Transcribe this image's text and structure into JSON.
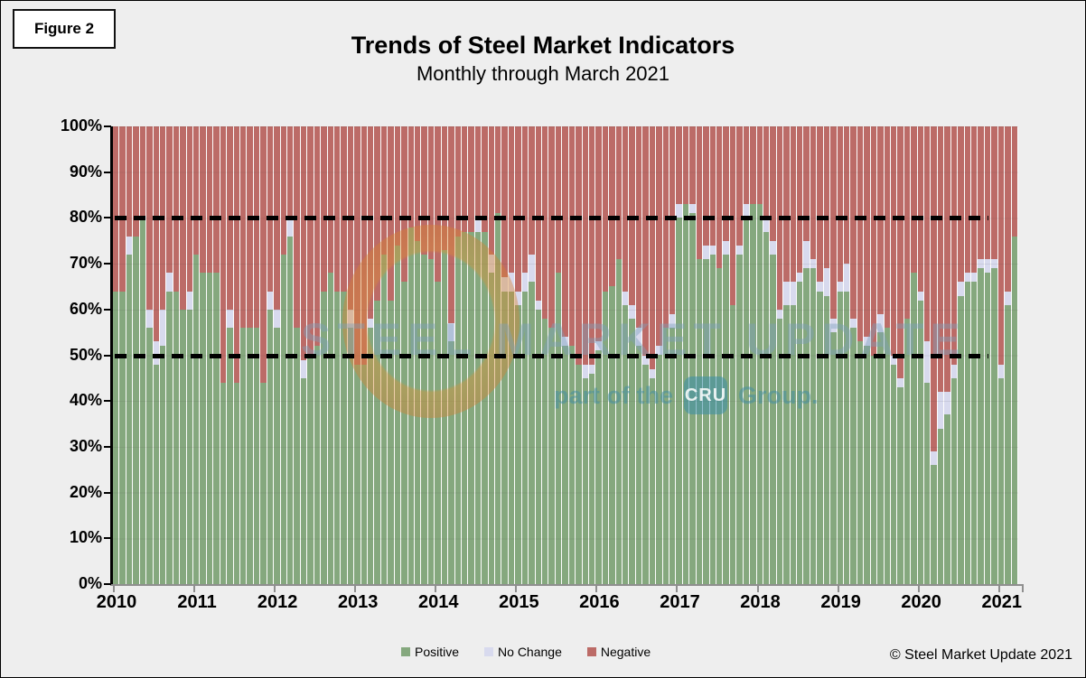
{
  "figure_label": "Figure 2",
  "title": "Trends of Steel Market Indicators",
  "subtitle": "Monthly through March 2021",
  "copyright": "© Steel Market Update 2021",
  "watermark": {
    "line1": "STEEL MARKET UPDATE",
    "line2_prefix": "part of the",
    "badge": "CRU",
    "line2_suffix": "Group."
  },
  "colors": {
    "positive": "#85a87e",
    "no_change": "#d8daee",
    "negative": "#bc6b67",
    "page_bg": "#eeeeee",
    "plot_bg": "#fdfdfd",
    "refline": "#000000",
    "watermark_orange": "#e09232",
    "watermark_teal": "#3e8ca6"
  },
  "legend": [
    {
      "label": "Positive",
      "color": "#85a87e"
    },
    {
      "label": "No Change",
      "color": "#d8daee"
    },
    {
      "label": "Negative",
      "color": "#bc6b67"
    }
  ],
  "chart_data": {
    "type": "bar",
    "stacked": true,
    "percent_stacked": true,
    "title": "Trends of Steel Market Indicators",
    "subtitle": "Monthly through March 2021",
    "xlabel": "",
    "ylabel": "",
    "ylim": [
      0,
      100
    ],
    "yticks": [
      "0%",
      "10%",
      "20%",
      "30%",
      "40%",
      "50%",
      "60%",
      "70%",
      "80%",
      "90%",
      "100%"
    ],
    "x_years": [
      "2010",
      "2011",
      "2012",
      "2013",
      "2014",
      "2015",
      "2016",
      "2017",
      "2018",
      "2019",
      "2020",
      "2021"
    ],
    "grid": true,
    "legend_position": "bottom",
    "reference_lines": [
      {
        "value": 50,
        "style": "dashed"
      },
      {
        "value": 80,
        "style": "dashed"
      }
    ],
    "series_names": [
      "Positive",
      "No Change",
      "Negative"
    ],
    "columns": [
      "month",
      "positive",
      "no_change",
      "negative"
    ],
    "months": [
      [
        "2010-01",
        64,
        0,
        36
      ],
      [
        "2010-02",
        64,
        0,
        36
      ],
      [
        "2010-03",
        72,
        4,
        24
      ],
      [
        "2010-04",
        76,
        0,
        24
      ],
      [
        "2010-05",
        80,
        0,
        20
      ],
      [
        "2010-06",
        56,
        4,
        40
      ],
      [
        "2010-07",
        48,
        5,
        47
      ],
      [
        "2010-08",
        52,
        8,
        40
      ],
      [
        "2010-09",
        64,
        4,
        32
      ],
      [
        "2010-10",
        64,
        0,
        36
      ],
      [
        "2010-11",
        60,
        0,
        40
      ],
      [
        "2010-12",
        60,
        4,
        36
      ],
      [
        "2011-01",
        72,
        0,
        28
      ],
      [
        "2011-02",
        68,
        0,
        32
      ],
      [
        "2011-03",
        68,
        0,
        32
      ],
      [
        "2011-04",
        68,
        0,
        32
      ],
      [
        "2011-05",
        44,
        0,
        56
      ],
      [
        "2011-06",
        56,
        4,
        40
      ],
      [
        "2011-07",
        44,
        0,
        56
      ],
      [
        "2011-08",
        56,
        0,
        44
      ],
      [
        "2011-09",
        56,
        0,
        44
      ],
      [
        "2011-10",
        56,
        0,
        44
      ],
      [
        "2011-11",
        44,
        0,
        56
      ],
      [
        "2011-12",
        60,
        4,
        36
      ],
      [
        "2012-01",
        56,
        4,
        40
      ],
      [
        "2012-02",
        72,
        0,
        28
      ],
      [
        "2012-03",
        76,
        4,
        20
      ],
      [
        "2012-04",
        56,
        0,
        44
      ],
      [
        "2012-05",
        45,
        4,
        51
      ],
      [
        "2012-06",
        50,
        0,
        50
      ],
      [
        "2012-07",
        52,
        0,
        48
      ],
      [
        "2012-08",
        64,
        0,
        36
      ],
      [
        "2012-09",
        68,
        0,
        32
      ],
      [
        "2012-10",
        64,
        0,
        36
      ],
      [
        "2012-11",
        64,
        0,
        36
      ],
      [
        "2012-12",
        56,
        4,
        40
      ],
      [
        "2013-01",
        48,
        0,
        52
      ],
      [
        "2013-02",
        48,
        0,
        52
      ],
      [
        "2013-03",
        56,
        2,
        42
      ],
      [
        "2013-04",
        62,
        0,
        38
      ],
      [
        "2013-05",
        72,
        0,
        28
      ],
      [
        "2013-06",
        62,
        0,
        38
      ],
      [
        "2013-07",
        74,
        0,
        26
      ],
      [
        "2013-08",
        66,
        0,
        34
      ],
      [
        "2013-09",
        78,
        0,
        22
      ],
      [
        "2013-10",
        75,
        0,
        25
      ],
      [
        "2013-11",
        72,
        0,
        28
      ],
      [
        "2013-12",
        71,
        0,
        29
      ],
      [
        "2014-01",
        66,
        0,
        34
      ],
      [
        "2014-02",
        73,
        0,
        27
      ],
      [
        "2014-03",
        53,
        4,
        43
      ],
      [
        "2014-04",
        76,
        0,
        24
      ],
      [
        "2014-05",
        77,
        0,
        23
      ],
      [
        "2014-06",
        77,
        0,
        23
      ],
      [
        "2014-07",
        77,
        3,
        20
      ],
      [
        "2014-08",
        77,
        0,
        23
      ],
      [
        "2014-09",
        68,
        4,
        28
      ],
      [
        "2014-10",
        81,
        0,
        19
      ],
      [
        "2014-11",
        64,
        3,
        33
      ],
      [
        "2014-12",
        64,
        4,
        32
      ],
      [
        "2015-01",
        61,
        3,
        36
      ],
      [
        "2015-02",
        64,
        4,
        32
      ],
      [
        "2015-03",
        66,
        6,
        28
      ],
      [
        "2015-04",
        60,
        2,
        38
      ],
      [
        "2015-05",
        58,
        0,
        42
      ],
      [
        "2015-06",
        56,
        0,
        44
      ],
      [
        "2015-07",
        68,
        0,
        32
      ],
      [
        "2015-08",
        52,
        2,
        46
      ],
      [
        "2015-09",
        52,
        0,
        48
      ],
      [
        "2015-10",
        48,
        0,
        52
      ],
      [
        "2015-11",
        45,
        3,
        52
      ],
      [
        "2015-12",
        46,
        2,
        52
      ],
      [
        "2016-01",
        51,
        2,
        47
      ],
      [
        "2016-02",
        64,
        0,
        36
      ],
      [
        "2016-03",
        65,
        0,
        35
      ],
      [
        "2016-04",
        71,
        0,
        29
      ],
      [
        "2016-05",
        61,
        3,
        36
      ],
      [
        "2016-06",
        58,
        3,
        39
      ],
      [
        "2016-07",
        52,
        4,
        44
      ],
      [
        "2016-08",
        48,
        2,
        50
      ],
      [
        "2016-09",
        45,
        2,
        53
      ],
      [
        "2016-10",
        50,
        2,
        48
      ],
      [
        "2016-11",
        56,
        0,
        44
      ],
      [
        "2016-12",
        56,
        3,
        41
      ],
      [
        "2017-01",
        80,
        3,
        17
      ],
      [
        "2017-02",
        83,
        0,
        17
      ],
      [
        "2017-03",
        81,
        2,
        17
      ],
      [
        "2017-04",
        71,
        0,
        29
      ],
      [
        "2017-05",
        71,
        3,
        26
      ],
      [
        "2017-06",
        72,
        2,
        26
      ],
      [
        "2017-07",
        69,
        0,
        31
      ],
      [
        "2017-08",
        72,
        3,
        25
      ],
      [
        "2017-09",
        61,
        0,
        39
      ],
      [
        "2017-10",
        72,
        2,
        26
      ],
      [
        "2017-11",
        80,
        3,
        17
      ],
      [
        "2017-12",
        83,
        0,
        17
      ],
      [
        "2018-01",
        83,
        0,
        17
      ],
      [
        "2018-02",
        77,
        3,
        20
      ],
      [
        "2018-03",
        72,
        3,
        25
      ],
      [
        "2018-04",
        58,
        2,
        40
      ],
      [
        "2018-05",
        61,
        5,
        34
      ],
      [
        "2018-06",
        61,
        5,
        34
      ],
      [
        "2018-07",
        66,
        2,
        32
      ],
      [
        "2018-08",
        69,
        6,
        25
      ],
      [
        "2018-09",
        69,
        2,
        29
      ],
      [
        "2018-10",
        64,
        2,
        34
      ],
      [
        "2018-11",
        63,
        6,
        31
      ],
      [
        "2018-12",
        55,
        3,
        42
      ],
      [
        "2019-01",
        64,
        2,
        34
      ],
      [
        "2019-02",
        64,
        6,
        30
      ],
      [
        "2019-03",
        56,
        2,
        42
      ],
      [
        "2019-04",
        53,
        0,
        47
      ],
      [
        "2019-05",
        52,
        2,
        46
      ],
      [
        "2019-06",
        50,
        0,
        50
      ],
      [
        "2019-07",
        55,
        4,
        41
      ],
      [
        "2019-08",
        56,
        0,
        44
      ],
      [
        "2019-09",
        48,
        2,
        50
      ],
      [
        "2019-10",
        43,
        2,
        55
      ],
      [
        "2019-11",
        58,
        0,
        42
      ],
      [
        "2019-12",
        68,
        0,
        32
      ],
      [
        "2020-01",
        62,
        2,
        36
      ],
      [
        "2020-02",
        44,
        9,
        47
      ],
      [
        "2020-03",
        26,
        3,
        71
      ],
      [
        "2020-04",
        34,
        8,
        58
      ],
      [
        "2020-05",
        37,
        5,
        58
      ],
      [
        "2020-06",
        45,
        3,
        52
      ],
      [
        "2020-07",
        63,
        3,
        34
      ],
      [
        "2020-08",
        66,
        2,
        32
      ],
      [
        "2020-09",
        66,
        2,
        32
      ],
      [
        "2020-10",
        69,
        2,
        29
      ],
      [
        "2020-11",
        68,
        3,
        29
      ],
      [
        "2020-12",
        69,
        2,
        29
      ],
      [
        "2021-01",
        45,
        3,
        52
      ],
      [
        "2021-02",
        61,
        3,
        36
      ],
      [
        "2021-03",
        76,
        0,
        24
      ]
    ]
  }
}
